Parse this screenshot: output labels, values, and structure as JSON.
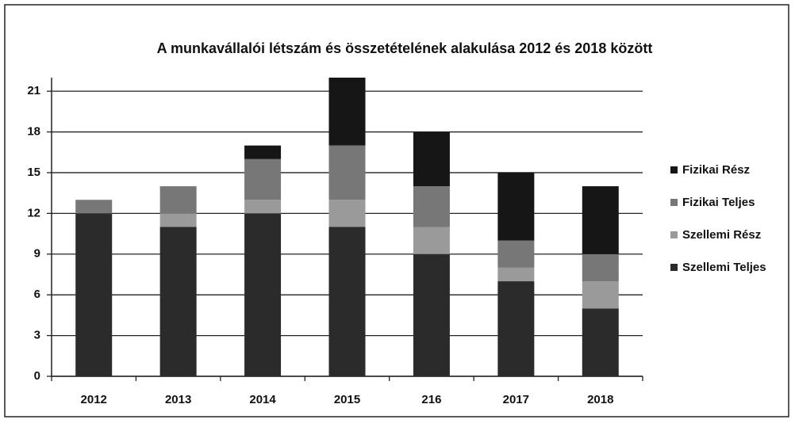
{
  "chart_data": {
    "type": "stacked_bar",
    "title": "A munkavállalói létszám és összetételének alakulása 2012 és 2018 között",
    "categories": [
      "2012",
      "2013",
      "2014",
      "2015",
      "216",
      "2017",
      "2018"
    ],
    "series": [
      {
        "name": "Szellemi Teljes",
        "color": "#2b2b2b",
        "values": [
          12,
          11,
          12,
          11,
          9,
          7,
          5
        ]
      },
      {
        "name": "Szellemi Rész",
        "color": "#9a9a9a",
        "values": [
          0,
          1,
          1,
          2,
          2,
          1,
          2
        ]
      },
      {
        "name": "Fizikai Teljes",
        "color": "#777777",
        "values": [
          1,
          2,
          3,
          4,
          3,
          2,
          2
        ]
      },
      {
        "name": "Fizikai Rész",
        "color": "#161616",
        "values": [
          0,
          0,
          1,
          5,
          4,
          5,
          5
        ]
      }
    ],
    "ylim": [
      0,
      22
    ],
    "yticks": [
      0,
      3,
      6,
      9,
      12,
      15,
      18,
      21
    ],
    "grid": true,
    "legend": "right"
  }
}
